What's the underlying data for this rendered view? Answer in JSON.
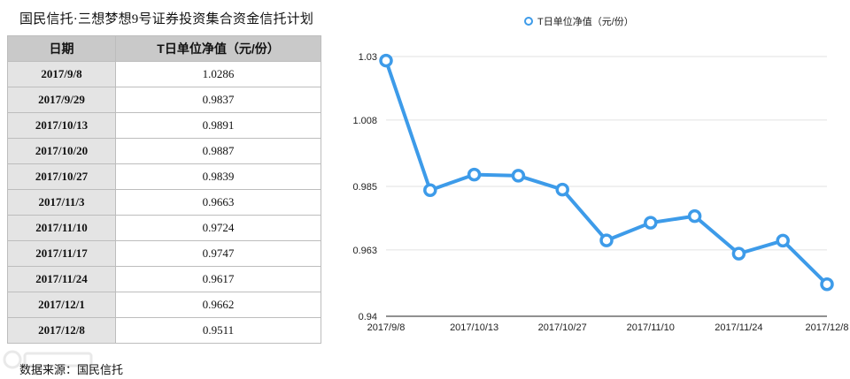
{
  "title": "国民信托·三想梦想9号证券投资集合资金信托计划",
  "source": "数据来源：国民信托",
  "table": {
    "headers": [
      "日期",
      "T日单位净值（元/份）"
    ],
    "rows": [
      [
        "2017/9/8",
        "1.0286"
      ],
      [
        "2017/9/29",
        "0.9837"
      ],
      [
        "2017/10/13",
        "0.9891"
      ],
      [
        "2017/10/20",
        "0.9887"
      ],
      [
        "2017/10/27",
        "0.9839"
      ],
      [
        "2017/11/3",
        "0.9663"
      ],
      [
        "2017/11/10",
        "0.9724"
      ],
      [
        "2017/11/17",
        "0.9747"
      ],
      [
        "2017/11/24",
        "0.9617"
      ],
      [
        "2017/12/1",
        "0.9662"
      ],
      [
        "2017/12/8",
        "0.9511"
      ]
    ]
  },
  "chart_data": {
    "type": "line",
    "legend": "T日单位净值（元/份）",
    "legend_position": "top-center",
    "x": [
      "2017/9/8",
      "2017/9/29",
      "2017/10/13",
      "2017/10/20",
      "2017/10/27",
      "2017/11/3",
      "2017/11/10",
      "2017/11/17",
      "2017/11/24",
      "2017/12/1",
      "2017/12/8"
    ],
    "x_tick_labels": [
      "2017/9/8",
      "2017/10/13",
      "2017/10/27",
      "2017/11/10",
      "2017/11/24",
      "2017/12/8"
    ],
    "series": [
      {
        "name": "T日单位净值（元/份）",
        "values": [
          1.0286,
          0.9837,
          0.9891,
          0.9887,
          0.9839,
          0.9663,
          0.9724,
          0.9747,
          0.9617,
          0.9662,
          0.9511
        ]
      }
    ],
    "y_ticks": [
      "0.94",
      "0.963",
      "0.985",
      "1.008",
      "1.03"
    ],
    "ylim": [
      0.94,
      1.03
    ],
    "grid": "horizontal",
    "colors": {
      "line": "#3d9be9"
    }
  }
}
